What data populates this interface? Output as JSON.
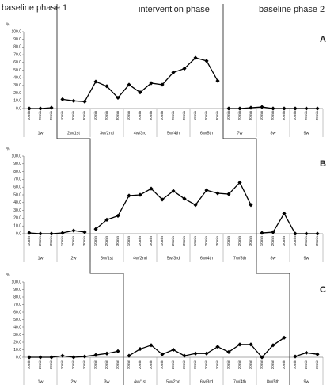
{
  "phases": [
    "baseline phase 1",
    "intervention phase",
    "baseline phase 2"
  ],
  "chart_data": [
    {
      "type": "line",
      "panel": "A",
      "ylabel": "%",
      "ylim": [
        0,
        100
      ],
      "yticks": [
        {
          "value": 0,
          "label": "0.0"
        },
        {
          "value": 10,
          "label": "10.0"
        },
        {
          "value": 20,
          "label": "20.0"
        },
        {
          "value": 30,
          "label": "30.0"
        },
        {
          "value": 40,
          "label": "40.0"
        },
        {
          "value": 50,
          "label": "50.0"
        },
        {
          "value": 60,
          "label": "60.0"
        },
        {
          "value": 70,
          "label": "70.0"
        },
        {
          "value": 80,
          "label": "80.0"
        },
        {
          "value": 90,
          "label": "90.0"
        },
        {
          "value": 100,
          "label": "100.0"
        }
      ],
      "categories": [
        "10min",
        "20min",
        "30min",
        "10min",
        "20min",
        "30min",
        "10min",
        "20min",
        "30min",
        "10min",
        "20min",
        "30min",
        "10min",
        "20min",
        "30min",
        "10min",
        "20min",
        "30min",
        "10min",
        "20min",
        "30min",
        "10min",
        "20min",
        "30min",
        "10min",
        "20min",
        "30min"
      ],
      "groups": [
        "1w",
        "2w/1st",
        "3w/2nd",
        "4w/3rd",
        "5w/4th",
        "6w/5th",
        "7w",
        "8w",
        "9w"
      ],
      "phase_starts": [
        3,
        18
      ],
      "color": "#000000",
      "values": [
        0,
        0,
        1,
        12,
        10,
        9,
        35,
        29,
        14,
        31,
        21,
        33,
        31,
        47,
        52,
        66,
        62,
        36,
        0,
        0,
        1,
        2,
        0,
        0,
        0,
        0,
        0
      ]
    },
    {
      "type": "line",
      "panel": "B",
      "ylabel": "%",
      "ylim": [
        0,
        100
      ],
      "yticks": [
        {
          "value": 0,
          "label": "0.0"
        },
        {
          "value": 10,
          "label": "10.0"
        },
        {
          "value": 20,
          "label": "20.0"
        },
        {
          "value": 30,
          "label": "30.0"
        },
        {
          "value": 40,
          "label": "40.0"
        },
        {
          "value": 50,
          "label": "50.0"
        },
        {
          "value": 60,
          "label": "60.0"
        },
        {
          "value": 70,
          "label": "70.0"
        },
        {
          "value": 80,
          "label": "80.0"
        },
        {
          "value": 90,
          "label": "90.0"
        },
        {
          "value": 100,
          "label": "100.0"
        }
      ],
      "categories": [
        "10min",
        "20min",
        "30min",
        "10min",
        "20min",
        "30min",
        "10min",
        "20min",
        "30min",
        "10min",
        "20min",
        "30min",
        "10min",
        "20min",
        "30min",
        "10min",
        "20min",
        "30min",
        "10min",
        "20min",
        "30min",
        "10min",
        "20min",
        "30min",
        "10min",
        "20min",
        "30min"
      ],
      "groups": [
        "1w",
        "2w",
        "3w/1st",
        "4w/2nd",
        "5w/3rd",
        "6w/4th",
        "7w/5th",
        "8w",
        "9w"
      ],
      "phase_starts": [
        6,
        21
      ],
      "color": "#000000",
      "values": [
        1,
        0,
        0,
        1,
        4,
        2,
        6,
        18,
        23,
        49,
        50,
        58,
        44,
        55,
        45,
        37,
        56,
        52,
        51,
        66,
        37,
        1,
        2,
        26,
        0,
        0,
        0
      ]
    },
    {
      "type": "line",
      "panel": "C",
      "ylabel": "%",
      "ylim": [
        0,
        100
      ],
      "yticks": [
        {
          "value": 0,
          "label": "0.0"
        },
        {
          "value": 10,
          "label": "10.0"
        },
        {
          "value": 20,
          "label": "20.0"
        },
        {
          "value": 30,
          "label": "30.0"
        },
        {
          "value": 40,
          "label": "40.0"
        },
        {
          "value": 50,
          "label": "50.0"
        },
        {
          "value": 60,
          "label": "60.0"
        },
        {
          "value": 70,
          "label": "70.0"
        },
        {
          "value": 80,
          "label": "80.0"
        },
        {
          "value": 90,
          "label": "90.0"
        },
        {
          "value": 100,
          "label": "100.0"
        }
      ],
      "categories": [
        "10min",
        "20min",
        "30min",
        "10min",
        "20min",
        "30min",
        "10min",
        "20min",
        "30min",
        "10min",
        "20min",
        "30min",
        "10min",
        "20min",
        "30min",
        "10min",
        "20min",
        "30min",
        "10min",
        "20min",
        "30min",
        "10min",
        "20min",
        "30min",
        "10min",
        "20min",
        "30min"
      ],
      "groups": [
        "1w",
        "2w",
        "3w",
        "4w/1st",
        "5w/2nd",
        "6w/3rd",
        "7w/4th",
        "8w/5th",
        "9w"
      ],
      "phase_starts": [
        9,
        24
      ],
      "color": "#000000",
      "values": [
        0,
        0,
        0,
        2,
        0,
        1,
        3,
        5,
        8,
        2,
        11,
        16,
        4,
        10,
        2,
        5,
        5,
        14,
        7,
        17,
        17,
        0,
        16,
        26,
        1,
        6,
        4
      ]
    }
  ]
}
